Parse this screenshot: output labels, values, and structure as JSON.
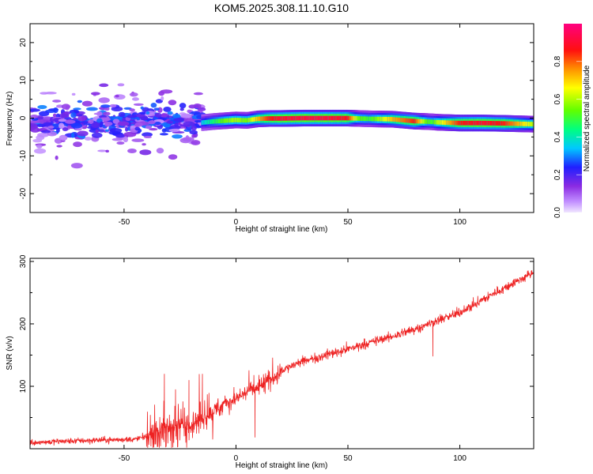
{
  "title": "KOM5.2025.308.11.10.G10",
  "chart_data": [
    {
      "type": "heatmap",
      "title": "KOM5.2025.308.11.10.G10",
      "xlabel": "Height of straight line (km)",
      "ylabel": "Frequency (Hz)",
      "xlim": [
        -92,
        133
      ],
      "ylim": [
        -25,
        25
      ],
      "xticks": [
        -50,
        0,
        50,
        100
      ],
      "yticks": [
        -20,
        -10,
        0,
        10,
        20
      ],
      "colorbar": {
        "label": "Normalized spectral amplitude",
        "range": [
          0,
          1
        ],
        "ticks": [
          0.0,
          0.2,
          0.4,
          0.6,
          0.8
        ],
        "colormap": "rainbow (violet-blue-cyan-green-yellow-red-magenta)"
      },
      "ridge": {
        "x": [
          -15,
          -10,
          -5,
          0,
          5,
          10,
          15,
          20,
          30,
          40,
          50,
          55,
          60,
          70,
          80,
          85,
          88,
          90,
          95,
          100,
          110,
          120,
          133
        ],
        "y": [
          -1.2,
          -0.9,
          -0.7,
          -0.5,
          -0.6,
          -0.2,
          -0.1,
          -0.1,
          0,
          0,
          0,
          -0.1,
          -0.2,
          -0.3,
          -0.8,
          -0.9,
          -1.0,
          -1.1,
          -1.2,
          -1.3,
          -1.3,
          -1.4,
          -1.6
        ],
        "amplitude": [
          0.35,
          0.45,
          0.55,
          0.6,
          0.55,
          0.72,
          0.85,
          0.9,
          0.92,
          0.92,
          0.88,
          0.55,
          0.5,
          0.72,
          0.85,
          0.55,
          0.5,
          0.6,
          0.72,
          0.85,
          0.9,
          0.85,
          0.6
        ]
      },
      "noise_region": {
        "x": [
          -92,
          -15
        ],
        "y": [
          -25,
          25
        ],
        "amplitude": [
          0.05,
          0.3
        ]
      }
    },
    {
      "type": "line",
      "xlabel": "Height of straight line (km)",
      "ylabel": "SNR (v/v)",
      "xlim": [
        -92,
        133
      ],
      "ylim": [
        0,
        305
      ],
      "xticks": [
        -50,
        0,
        50,
        100
      ],
      "yticks": [
        100,
        200,
        300
      ],
      "color": "#ee2222",
      "series": [
        {
          "trend_x": [
            -92,
            -60,
            -45,
            -40,
            -35,
            -30,
            -25,
            -20,
            -15,
            -10,
            -5,
            0,
            5,
            10,
            15,
            20,
            30,
            40,
            50,
            60,
            70,
            80,
            90,
            100,
            110,
            120,
            133
          ],
          "trend_y": [
            10,
            14,
            15,
            20,
            30,
            35,
            38,
            40,
            50,
            60,
            72,
            80,
            92,
            98,
            110,
            125,
            140,
            150,
            160,
            170,
            180,
            192,
            205,
            218,
            238,
            258,
            282
          ],
          "spikes": [
            {
              "x": -32,
              "y": 120
            },
            {
              "x": -27,
              "y": 95
            },
            {
              "x": -21,
              "y": 110
            },
            {
              "x": -15,
              "y": 120
            },
            {
              "x": 8,
              "y": 118
            },
            {
              "x": 8.5,
              "y": 18
            },
            {
              "x": 88,
              "y": 148
            }
          ]
        }
      ]
    }
  ]
}
